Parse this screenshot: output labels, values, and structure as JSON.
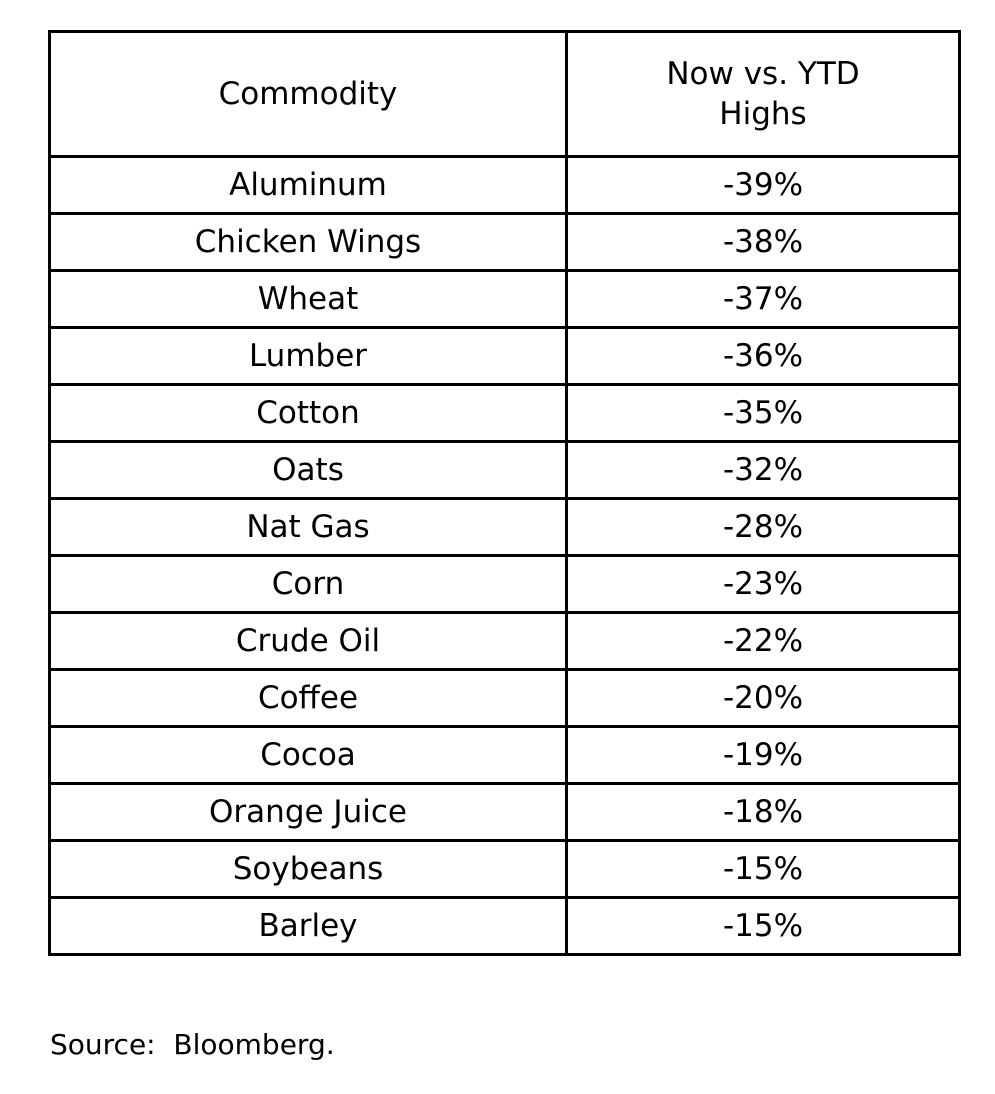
{
  "colors": {
    "highlight_pink": "#f7c6cd",
    "border": "#000000",
    "text": "#000000",
    "background": "#ffffff"
  },
  "table": {
    "columns": [
      "Commodity",
      "Now vs. YTD Highs"
    ],
    "rows": [
      {
        "commodity": "Aluminum",
        "change": "-39%"
      },
      {
        "commodity": "Chicken Wings",
        "change": "-38%"
      },
      {
        "commodity": "Wheat",
        "change": "-37%"
      },
      {
        "commodity": "Lumber",
        "change": "-36%"
      },
      {
        "commodity": "Cotton",
        "change": "-35%"
      },
      {
        "commodity": "Oats",
        "change": "-32%"
      },
      {
        "commodity": "Nat Gas",
        "change": "-28%"
      },
      {
        "commodity": "Corn",
        "change": "-23%"
      },
      {
        "commodity": "Crude Oil",
        "change": "-22%"
      },
      {
        "commodity": "Coffee",
        "change": "-20%"
      },
      {
        "commodity": "Cocoa",
        "change": "-19%"
      },
      {
        "commodity": "Orange Juice",
        "change": "-18%"
      },
      {
        "commodity": "Soybeans",
        "change": "-15%"
      },
      {
        "commodity": "Barley",
        "change": "-15%"
      }
    ]
  },
  "source_note": "Source:  Bloomberg.",
  "chart_data": {
    "type": "table",
    "title": "",
    "columns": [
      "Commodity",
      "Now vs. YTD Highs"
    ],
    "rows": [
      [
        "Aluminum",
        "-39%"
      ],
      [
        "Chicken Wings",
        "-38%"
      ],
      [
        "Wheat",
        "-37%"
      ],
      [
        "Lumber",
        "-36%"
      ],
      [
        "Cotton",
        "-35%"
      ],
      [
        "Oats",
        "-32%"
      ],
      [
        "Nat Gas",
        "-28%"
      ],
      [
        "Corn",
        "-23%"
      ],
      [
        "Crude Oil",
        "-22%"
      ],
      [
        "Coffee",
        "-20%"
      ],
      [
        "Cocoa",
        "-19%"
      ],
      [
        "Orange Juice",
        "-18%"
      ],
      [
        "Soybeans",
        "-15%"
      ],
      [
        "Barley",
        "-15%"
      ]
    ],
    "values_numeric_pct": [
      -39,
      -38,
      -37,
      -36,
      -35,
      -32,
      -28,
      -23,
      -22,
      -20,
      -19,
      -18,
      -15,
      -15
    ],
    "highlight": "change column cells filled light pink",
    "source": "Source: Bloomberg."
  }
}
